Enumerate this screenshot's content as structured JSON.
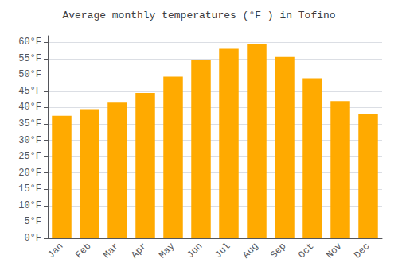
{
  "chart_data": {
    "type": "bar",
    "title": "Average monthly temperatures (°F ) in Tofino",
    "categories": [
      "Jan",
      "Feb",
      "Mar",
      "Apr",
      "May",
      "Jun",
      "Jul",
      "Aug",
      "Sep",
      "Oct",
      "Nov",
      "Dec"
    ],
    "values": [
      37.5,
      39.5,
      41.5,
      44.5,
      49.5,
      54.5,
      58.0,
      59.5,
      55.5,
      49.0,
      42.0,
      38.0
    ],
    "color": "#FFAA00",
    "ylim": [
      0,
      62
    ],
    "yticks": [
      {
        "value": 0,
        "label": "0°F"
      },
      {
        "value": 5,
        "label": "5°F"
      },
      {
        "value": 10,
        "label": "10°F"
      },
      {
        "value": 15,
        "label": "15°F"
      },
      {
        "value": 20,
        "label": "20°F"
      },
      {
        "value": 25,
        "label": "25°F"
      },
      {
        "value": 30,
        "label": "30°F"
      },
      {
        "value": 35,
        "label": "35°F"
      },
      {
        "value": 40,
        "label": "40°F"
      },
      {
        "value": 45,
        "label": "45°F"
      },
      {
        "value": 50,
        "label": "50°F"
      },
      {
        "value": 55,
        "label": "55°F"
      },
      {
        "value": 60,
        "label": "60°F"
      }
    ],
    "grid": true
  }
}
